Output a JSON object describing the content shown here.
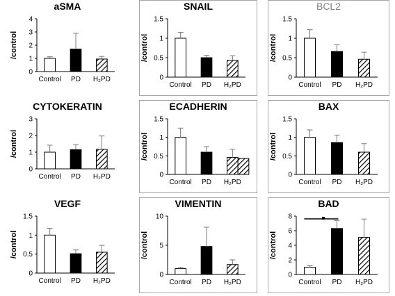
{
  "figure": {
    "ylabel": "/control",
    "colors": {
      "axis": "#000000",
      "fill_control": "#ffffff",
      "fill_pd": "#000000",
      "hatch": "#000000",
      "frame": "#a6a6a6"
    }
  },
  "chart_data": [
    {
      "type": "bar",
      "title": "aSMA",
      "title_color": "#000000",
      "ylim": [
        0,
        4
      ],
      "yticks": [
        "0",
        "1",
        "2",
        "3",
        "4"
      ],
      "categories": [
        "Control",
        "PD",
        "H₂PD"
      ],
      "values": [
        1.0,
        1.7,
        0.95
      ],
      "errors": [
        0.12,
        1.2,
        0.2
      ],
      "framed": false
    },
    {
      "type": "bar",
      "title": "SNAIL",
      "title_color": "#000000",
      "ylim": [
        0,
        1.5
      ],
      "yticks": [
        "0",
        "0.5",
        "1",
        "1.5"
      ],
      "categories": [
        "Control",
        "PD",
        "H₂PD"
      ],
      "values": [
        1.0,
        0.5,
        0.43
      ],
      "errors": [
        0.15,
        0.06,
        0.12
      ],
      "framed": true
    },
    {
      "type": "bar",
      "title": "BCL2",
      "title_color": "#808080",
      "ylim": [
        0,
        1.5
      ],
      "yticks": [
        "0",
        "0.5",
        "1",
        "1.5"
      ],
      "categories": [
        "Control",
        "PD",
        "H₂PD"
      ],
      "values": [
        1.0,
        0.66,
        0.46
      ],
      "errors": [
        0.22,
        0.17,
        0.18
      ],
      "framed": true
    },
    {
      "type": "bar",
      "title": "CYTOKERATIN",
      "title_color": "#000000",
      "ylim": [
        0,
        3
      ],
      "yticks": [
        "0",
        "1",
        "2",
        "3"
      ],
      "categories": [
        "Control",
        "PD",
        "H₂PD"
      ],
      "values": [
        1.0,
        1.15,
        1.17
      ],
      "errors": [
        0.42,
        0.3,
        0.8
      ],
      "framed": false
    },
    {
      "type": "bar",
      "title": "ECADHERIN",
      "title_color": "#000000",
      "ylim": [
        0,
        1.5
      ],
      "yticks": [
        "0",
        "0.5",
        "1",
        "1.5"
      ],
      "categories": [
        "Control",
        "PD",
        "H₂PD"
      ],
      "values": [
        1.0,
        0.6,
        0.46
      ],
      "errors": [
        0.25,
        0.15,
        0.22
      ],
      "extra_bar": 0.43,
      "framed": true
    },
    {
      "type": "bar",
      "title": "BAX",
      "title_color": "#000000",
      "ylim": [
        0,
        1.5
      ],
      "yticks": [
        "0",
        "0.5",
        "1",
        "1.5"
      ],
      "categories": [
        "Control",
        "PD",
        "H₂PD"
      ],
      "values": [
        1.0,
        0.86,
        0.6
      ],
      "errors": [
        0.2,
        0.2,
        0.23
      ],
      "framed": true
    },
    {
      "type": "bar",
      "title": "VEGF",
      "title_color": "#000000",
      "ylim": [
        0,
        1.5
      ],
      "yticks": [
        "0",
        "0.5",
        "1",
        "1.5"
      ],
      "categories": [
        "Control",
        "PD",
        "H₂PD"
      ],
      "values": [
        1.0,
        0.51,
        0.55
      ],
      "errors": [
        0.18,
        0.1,
        0.18
      ],
      "framed": false
    },
    {
      "type": "bar",
      "title": "VIMENTIN",
      "title_color": "#000000",
      "ylim": [
        0,
        10
      ],
      "yticks": [
        "0",
        "5",
        "10"
      ],
      "categories": [
        "Control",
        "PD",
        "H₂PD"
      ],
      "values": [
        1.0,
        4.8,
        1.7
      ],
      "errors": [
        0.25,
        3.3,
        0.8
      ],
      "framed": true
    },
    {
      "type": "bar",
      "title": "BAD",
      "title_color": "#000000",
      "ylim": [
        0,
        8
      ],
      "yticks": [
        "0",
        "2",
        "4",
        "6",
        "8"
      ],
      "categories": [
        "Control",
        "PD",
        "H₂PD"
      ],
      "values": [
        1.0,
        6.3,
        5.1
      ],
      "errors": [
        0.2,
        1.1,
        2.5
      ],
      "significance": true,
      "framed": true
    }
  ]
}
